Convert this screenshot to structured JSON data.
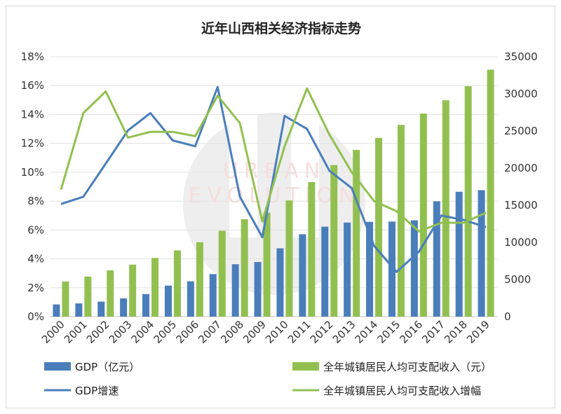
{
  "chart_data": {
    "type": "bar",
    "title": "近年山西相关经济指标走势",
    "categories": [
      "2000",
      "2001",
      "2002",
      "2003",
      "2004",
      "2005",
      "2006",
      "2007",
      "2008",
      "2009",
      "2010",
      "2011",
      "2012",
      "2013",
      "2014",
      "2015",
      "2016",
      "2017",
      "2018",
      "2019"
    ],
    "y_left": {
      "min": 0,
      "max": 18,
      "ticks": [
        "0%",
        "2%",
        "4%",
        "6%",
        "8%",
        "10%",
        "12%",
        "14%",
        "16%",
        "18%"
      ]
    },
    "y_right": {
      "min": 0,
      "max": 35000,
      "ticks": [
        "0",
        "5000",
        "10000",
        "15000",
        "20000",
        "25000",
        "30000",
        "35000"
      ]
    },
    "grid": true,
    "legend_position": "bottom",
    "series": [
      {
        "name": "GDP（亿元）",
        "kind": "bar",
        "axis": "right",
        "color": "#4a7ebb",
        "values": [
          1644,
          1780,
          2018,
          2456,
          3042,
          4180,
          4753,
          5733,
          7056,
          7358,
          9201,
          11100,
          12113,
          12666,
          12761,
          12803,
          12966,
          15528,
          16818,
          17027
        ]
      },
      {
        "name": "全年城镇居民人均可支配收入（元）",
        "kind": "bar",
        "axis": "right",
        "color": "#92c050",
        "values": [
          4724,
          5391,
          6234,
          7005,
          7903,
          8914,
          10028,
          11565,
          13119,
          13997,
          15648,
          18124,
          20412,
          22456,
          24069,
          25828,
          27352,
          29132,
          31035,
          33262
        ]
      },
      {
        "name": "GDP增速",
        "kind": "line",
        "axis": "left",
        "color": "#4a7ebb",
        "values": [
          7.8,
          8.3,
          10.6,
          12.9,
          14.1,
          12.2,
          11.8,
          15.9,
          8.3,
          5.5,
          13.9,
          13.0,
          10.1,
          8.9,
          4.9,
          3.1,
          4.5,
          7.0,
          6.7,
          6.2
        ]
      },
      {
        "name": "全年城镇居民人均可支配收入增幅",
        "kind": "line",
        "axis": "left",
        "color": "#92c050",
        "values": [
          8.8,
          14.1,
          15.6,
          12.4,
          12.8,
          12.8,
          12.5,
          15.3,
          13.4,
          6.6,
          11.8,
          15.8,
          12.6,
          10.0,
          8.0,
          7.3,
          5.9,
          6.5,
          6.5,
          7.2
        ]
      }
    ],
    "legend": [
      {
        "label": "GDP（亿元）",
        "kind": "bar",
        "color": "#4a7ebb"
      },
      {
        "label": "全年城镇居民人均可支配收入（元）",
        "kind": "bar",
        "color": "#92c050"
      },
      {
        "label": "GDP增速",
        "kind": "line",
        "color": "#4a7ebb"
      },
      {
        "label": "全年城镇居民人均可支配收入增幅",
        "kind": "line",
        "color": "#92c050"
      }
    ]
  },
  "watermark": {
    "text_line1": "URBAN",
    "text_line2": "EVOLUTION",
    "color": "#d8d8d8"
  }
}
